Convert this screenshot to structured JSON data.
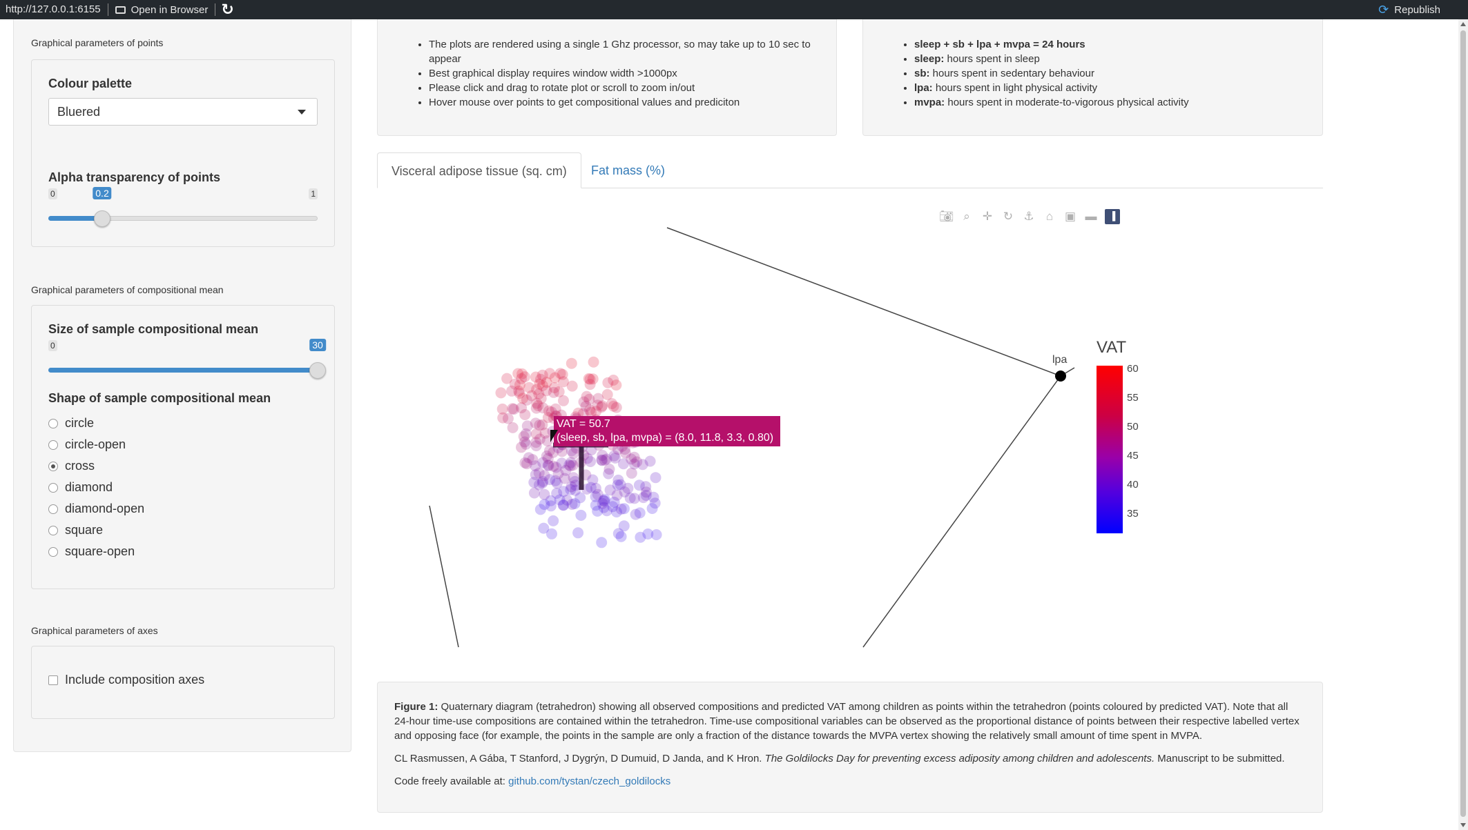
{
  "topbar": {
    "url": "http://127.0.0.1:6155",
    "open_browser": "Open in Browser",
    "republish": "Republish"
  },
  "sidebar": {
    "points_section": "Graphical parameters of points",
    "palette_label": "Colour palette",
    "palette_value": "Bluered",
    "alpha_label": "Alpha transparency of points",
    "alpha_min": "0",
    "alpha_max": "1",
    "alpha_value": "0.2",
    "alpha_fraction": 0.2,
    "mean_section": "Graphical parameters of compositional mean",
    "size_label": "Size of sample compositional mean",
    "size_min": "0",
    "size_value": "30",
    "size_fraction": 1.0,
    "shape_label": "Shape of sample compositional mean",
    "shapes": [
      {
        "label": "circle",
        "checked": false
      },
      {
        "label": "circle-open",
        "checked": false
      },
      {
        "label": "cross",
        "checked": true
      },
      {
        "label": "diamond",
        "checked": false
      },
      {
        "label": "diamond-open",
        "checked": false
      },
      {
        "label": "square",
        "checked": false
      },
      {
        "label": "square-open",
        "checked": false
      }
    ],
    "axes_section": "Graphical parameters of axes",
    "axes_checkbox": "Include composition axes"
  },
  "info_left": [
    "The plots are rendered using a single 1 Ghz processor, so may take up to 10 sec to appear",
    "Best graphical display requires window width >1000px",
    "Please click and drag to rotate plot or scroll to zoom in/out",
    "Hover mouse over points to get compositional values and prediciton"
  ],
  "info_right": [
    {
      "bold": "sleep + sb + lpa + mvpa = 24 hours",
      "text": ""
    },
    {
      "bold": "sleep:",
      "text": " hours spent in sleep"
    },
    {
      "bold": "sb:",
      "text": " hours spent in sedentary behaviour"
    },
    {
      "bold": "lpa:",
      "text": " hours spent in light physical activity"
    },
    {
      "bold": "mvpa:",
      "text": " hours spent in moderate-to-vigorous physical activity"
    }
  ],
  "tabs": [
    "Visceral adipose tissue (sq. cm)",
    "Fat mass (%)"
  ],
  "plot": {
    "vertex_label": "lpa",
    "colorbar_title": "VAT",
    "colorbar_ticks": [
      "60",
      "55",
      "50",
      "45",
      "40",
      "35"
    ],
    "tooltip_line1": "VAT = 50.7",
    "tooltip_line2": "(sleep, sb, lpa, mvpa) = (8.0, 11.8, 3.3, 0.80)",
    "colors": {
      "high": "#ff0000",
      "low": "#0000ff"
    }
  },
  "caption": {
    "figure_bold": "Figure 1:",
    "figure_text": " Quaternary diagram (tetrahedron) showing all observed compositions and predicted VAT among children as points within the tetrahedron (points coloured by predicted VAT). Note that all 24-hour time-use compositions are contained within the tetrahedron. Time-use compositional variables can be observed as the proportional distance of points between their respective labelled vertex and opposing face (for example, the points in the sample are only a fraction of the distance towards the MVPA vertex showing the relatively small amount of time spent in MVPA.",
    "authors": "CL Rasmussen, A Gába, T Stanford, J Dygrýn, D Dumuid, D Janda, and K Hron.",
    "title_italic": "The Goldilocks Day for preventing excess adiposity among children and adolescents.",
    "manuscript": " Manuscript to be submitted.",
    "code_label": "Code freely available at: ",
    "code_link": "github.com/tystan/czech_goldilocks"
  }
}
